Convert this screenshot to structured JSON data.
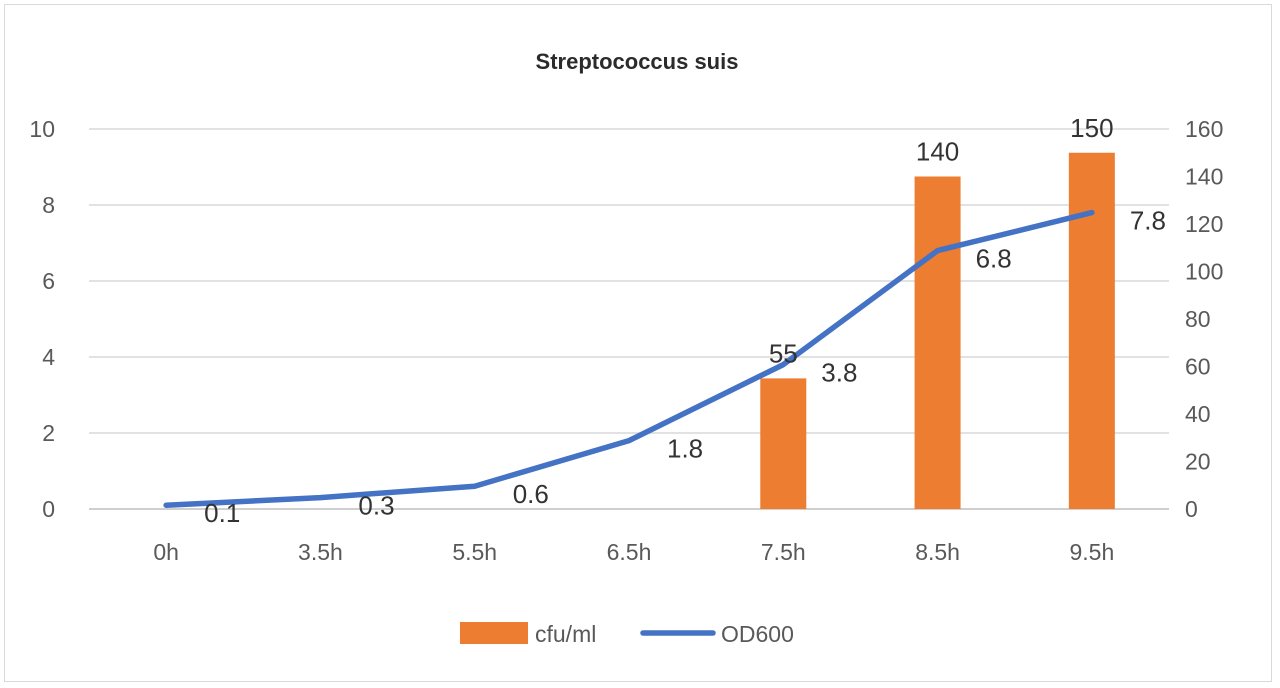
{
  "chart_data": {
    "type": "bar",
    "title": "Streptococcus suis",
    "categories": [
      "0h",
      "3.5h",
      "5.5h",
      "6.5h",
      "7.5h",
      "8.5h",
      "9.5h"
    ],
    "left_axis": {
      "ylim": [
        0,
        10
      ],
      "ticks": [
        "0",
        "2",
        "4",
        "6",
        "8",
        "10"
      ]
    },
    "right_axis": {
      "ylim": [
        0,
        160
      ],
      "ticks": [
        "0",
        "20",
        "40",
        "60",
        "80",
        "100",
        "120",
        "140",
        "160"
      ]
    },
    "grid": true,
    "legend_position": "bottom",
    "series": [
      {
        "name": "cfu/ml",
        "type": "bar",
        "axis": "right",
        "color": "#ed7d31",
        "values": [
          null,
          null,
          null,
          null,
          55,
          140,
          150
        ],
        "labels": [
          "",
          "",
          "",
          "",
          "55",
          "140",
          "150"
        ]
      },
      {
        "name": "OD600",
        "type": "line",
        "axis": "left",
        "color": "#4472c4",
        "values": [
          0.1,
          0.3,
          0.6,
          1.8,
          3.8,
          6.8,
          7.8
        ],
        "labels": [
          "0.1",
          "0.3",
          "0.6",
          "1.8",
          "3.8",
          "6.8",
          "7.8"
        ]
      }
    ]
  }
}
